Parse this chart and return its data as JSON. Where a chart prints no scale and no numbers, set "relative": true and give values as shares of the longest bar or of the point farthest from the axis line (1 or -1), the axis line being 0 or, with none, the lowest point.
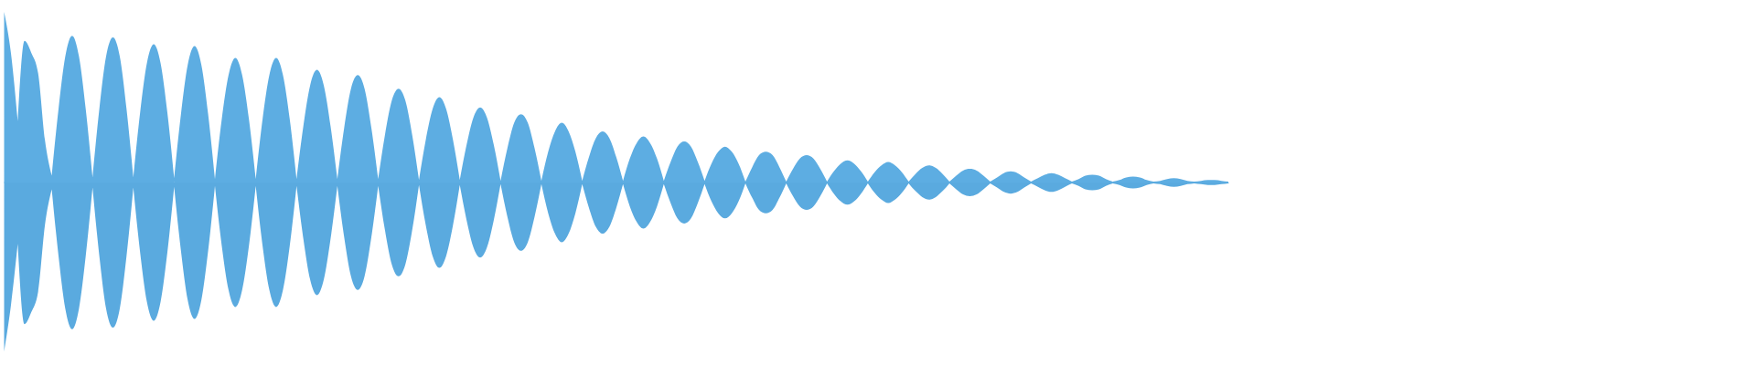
{
  "chart_data": {
    "type": "area",
    "relative": true,
    "categories": [
      null,
      null,
      null,
      null,
      null,
      null,
      null,
      null,
      null,
      null,
      null,
      null,
      null,
      null,
      null,
      null,
      null,
      null,
      null,
      null,
      null,
      null,
      null,
      null,
      null,
      null,
      null,
      null,
      null,
      null,
      null,
      null,
      null,
      null,
      null,
      null,
      null,
      null,
      null,
      null,
      null,
      null,
      null,
      null,
      null,
      null,
      null,
      null,
      null,
      null,
      null,
      null,
      null,
      null,
      null,
      null,
      null,
      null,
      null,
      null,
      null,
      null,
      null,
      null,
      null,
      null,
      null,
      null,
      null,
      null,
      null,
      null,
      null,
      null,
      null,
      null,
      null,
      null,
      null,
      null,
      null,
      null,
      null,
      null,
      null,
      null,
      null,
      null,
      null,
      null,
      null,
      null,
      null,
      null,
      null,
      null,
      null,
      null,
      null,
      null,
      null,
      null,
      null,
      null,
      null,
      null,
      null,
      null,
      null,
      null,
      null,
      null,
      null,
      null,
      null,
      null,
      null,
      null,
      null,
      null,
      null,
      null,
      null,
      null,
      null,
      null,
      null,
      null,
      null,
      null,
      null,
      null,
      null,
      null,
      null,
      null,
      null,
      null,
      null,
      null,
      null,
      null,
      null,
      null,
      null,
      null,
      null,
      null,
      null,
      null,
      null,
      null,
      null,
      null,
      null,
      null,
      null,
      null,
      null,
      null,
      null,
      null,
      null,
      null,
      null,
      null,
      null,
      null,
      null,
      null,
      null,
      null,
      null,
      null,
      null,
      null,
      null,
      null,
      null,
      null,
      null
    ],
    "series": [
      {
        "color": "#5dade2",
        "values": [
          1.0,
          0.76,
          0.36,
          0.83,
          0.76,
          0.64,
          0.25,
          0.04,
          0.43,
          0.74,
          0.86,
          0.74,
          0.43,
          0.03,
          0.43,
          0.74,
          0.85,
          0.74,
          0.43,
          0.03,
          0.41,
          0.7,
          0.81,
          0.7,
          0.41,
          0.025,
          0.4,
          0.69,
          0.8,
          0.69,
          0.4,
          0.02,
          0.37,
          0.63,
          0.73,
          0.63,
          0.37,
          0.02,
          0.37,
          0.63,
          0.73,
          0.63,
          0.37,
          0.02,
          0.33,
          0.57,
          0.66,
          0.57,
          0.33,
          0.02,
          0.32,
          0.55,
          0.63,
          0.55,
          0.32,
          0.02,
          0.28,
          0.48,
          0.55,
          0.48,
          0.28,
          0.015,
          0.25,
          0.43,
          0.5,
          0.43,
          0.25,
          0.015,
          0.22,
          0.38,
          0.44,
          0.38,
          0.22,
          0.01,
          0.2,
          0.35,
          0.4,
          0.35,
          0.2,
          0.01,
          0.18,
          0.3,
          0.35,
          0.3,
          0.18,
          0.01,
          0.15,
          0.26,
          0.3,
          0.26,
          0.15,
          0.01,
          0.14,
          0.23,
          0.27,
          0.23,
          0.14,
          0.01,
          0.12,
          0.21,
          0.24,
          0.21,
          0.12,
          0.01,
          0.11,
          0.18,
          0.21,
          0.18,
          0.11,
          0.005,
          0.09,
          0.16,
          0.18,
          0.16,
          0.09,
          0.005,
          0.08,
          0.14,
          0.16,
          0.14,
          0.08,
          0.005,
          0.065,
          0.11,
          0.13,
          0.11,
          0.065,
          0.005,
          0.06,
          0.1,
          0.12,
          0.1,
          0.06,
          0.005,
          0.05,
          0.085,
          0.1,
          0.085,
          0.05,
          0.005,
          0.04,
          0.07,
          0.08,
          0.07,
          0.04,
          0.005,
          0.03,
          0.055,
          0.065,
          0.055,
          0.03,
          0.005,
          0.025,
          0.045,
          0.055,
          0.045,
          0.025,
          0.005,
          0.02,
          0.04,
          0.045,
          0.04,
          0.02,
          0.005,
          0.015,
          0.03,
          0.035,
          0.03,
          0.015,
          0.005,
          0.01,
          0.02,
          0.025,
          0.02,
          0.01,
          0.005,
          0.01,
          0.015,
          0.015,
          0.01,
          0.005
        ]
      },
      {
        "color": "#5aaadf",
        "values": [
          -0.99,
          -0.72,
          -0.36,
          -0.83,
          -0.76,
          -0.64,
          -0.25,
          -0.04,
          -0.43,
          -0.74,
          -0.86,
          -0.74,
          -0.43,
          -0.03,
          -0.43,
          -0.74,
          -0.85,
          -0.74,
          -0.43,
          -0.03,
          -0.41,
          -0.7,
          -0.81,
          -0.7,
          -0.41,
          -0.025,
          -0.4,
          -0.69,
          -0.8,
          -0.69,
          -0.4,
          -0.02,
          -0.37,
          -0.63,
          -0.73,
          -0.63,
          -0.37,
          -0.02,
          -0.37,
          -0.63,
          -0.73,
          -0.63,
          -0.37,
          -0.02,
          -0.33,
          -0.57,
          -0.66,
          -0.57,
          -0.33,
          -0.02,
          -0.32,
          -0.55,
          -0.63,
          -0.55,
          -0.32,
          -0.02,
          -0.28,
          -0.48,
          -0.55,
          -0.48,
          -0.28,
          -0.015,
          -0.25,
          -0.43,
          -0.5,
          -0.43,
          -0.25,
          -0.015,
          -0.22,
          -0.38,
          -0.44,
          -0.38,
          -0.22,
          -0.01,
          -0.2,
          -0.35,
          -0.4,
          -0.35,
          -0.2,
          -0.01,
          -0.18,
          -0.3,
          -0.35,
          -0.3,
          -0.18,
          -0.01,
          -0.15,
          -0.26,
          -0.3,
          -0.26,
          -0.15,
          -0.01,
          -0.14,
          -0.23,
          -0.27,
          -0.23,
          -0.14,
          -0.01,
          -0.12,
          -0.21,
          -0.24,
          -0.21,
          -0.12,
          -0.01,
          -0.11,
          -0.18,
          -0.21,
          -0.18,
          -0.11,
          -0.005,
          -0.09,
          -0.16,
          -0.18,
          -0.16,
          -0.09,
          -0.005,
          -0.08,
          -0.14,
          -0.16,
          -0.14,
          -0.08,
          -0.005,
          -0.065,
          -0.11,
          -0.13,
          -0.11,
          -0.065,
          -0.005,
          -0.06,
          -0.1,
          -0.12,
          -0.1,
          -0.06,
          -0.005,
          -0.05,
          -0.085,
          -0.1,
          -0.085,
          -0.05,
          -0.005,
          -0.04,
          -0.07,
          -0.08,
          -0.07,
          -0.04,
          -0.005,
          -0.03,
          -0.055,
          -0.065,
          -0.055,
          -0.03,
          -0.005,
          -0.025,
          -0.045,
          -0.055,
          -0.045,
          -0.025,
          -0.005,
          -0.02,
          -0.04,
          -0.045,
          -0.04,
          -0.02,
          -0.005,
          -0.015,
          -0.03,
          -0.035,
          -0.03,
          -0.015,
          -0.005,
          -0.01,
          -0.02,
          -0.025,
          -0.02,
          -0.01,
          -0.005,
          -0.01,
          -0.015,
          -0.015,
          -0.01,
          -0.005
        ]
      }
    ],
    "ref_lines": [
      {
        "axis": "y",
        "value": 0,
        "color": "#5dade2"
      }
    ]
  }
}
